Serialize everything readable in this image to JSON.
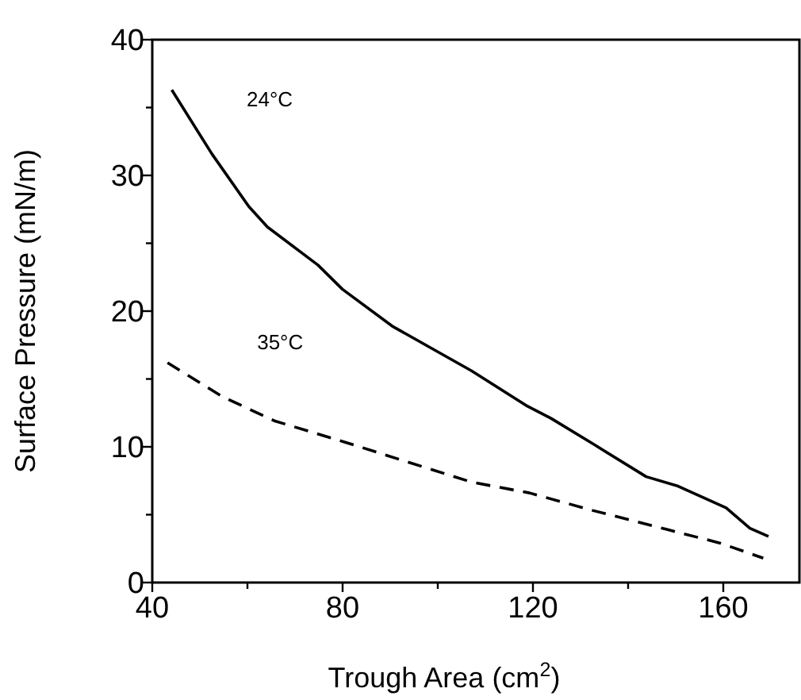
{
  "chart_data": {
    "type": "line",
    "xlabel": "Trough Area (cm$^{2}$)",
    "ylabel": "Surface Pressure (mN/m)",
    "xlim": [
      40,
      176
    ],
    "ylim": [
      0,
      40
    ],
    "xticks": [
      40,
      {
        "value": 60,
        "label": null
      },
      80,
      {
        "value": 100,
        "label": null
      },
      120,
      {
        "value": 140,
        "label": null
      },
      160
    ],
    "yticks": [
      0,
      {
        "value": 5,
        "label": null
      },
      10,
      {
        "value": 15,
        "label": null
      },
      20,
      {
        "value": 25,
        "label": null
      },
      30,
      {
        "value": 35,
        "label": null
      },
      40
    ],
    "grid": false,
    "marker": "none",
    "series": [
      {
        "name": "24°C",
        "color": "#000000",
        "line_style": "solid",
        "x": [
          44.1,
          52.5,
          60.3,
          64.2,
          74.8,
          80,
          90.4,
          107.1,
          118.8,
          123.8,
          132.7,
          143.8,
          150.5,
          160.6,
          165.6,
          169.5
        ],
        "values": [
          36.3,
          31.6,
          27.7,
          26.2,
          23.4,
          21.6,
          18.9,
          15.6,
          13.0,
          12.1,
          10.2,
          7.8,
          7.1,
          5.5,
          4.0,
          3.4
        ]
      },
      {
        "name": "35°C",
        "color": "#000000",
        "line_style": "dashed",
        "x": [
          43.2,
          54.7,
          65.8,
          80,
          92.6,
          107.1,
          119.3,
          132.7,
          148.3,
          159.4,
          168.4
        ],
        "values": [
          16.2,
          13.7,
          11.9,
          10.4,
          9.0,
          7.4,
          6.6,
          5.3,
          3.9,
          2.9,
          1.8
        ]
      }
    ]
  }
}
